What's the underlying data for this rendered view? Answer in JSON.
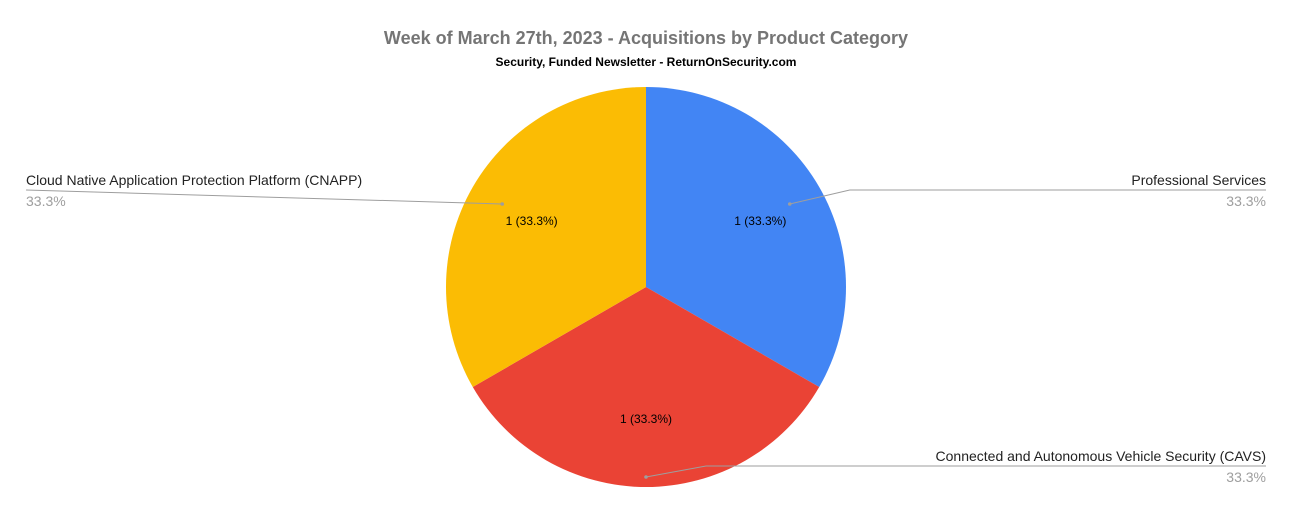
{
  "chart_data": {
    "type": "pie",
    "title": "Week of March 27th, 2023 - Acquisitions by Product Category",
    "subtitle": "Security, Funded Newsletter - ReturnOnSecurity.com",
    "slices": [
      {
        "label": "Professional Services",
        "value": 1,
        "percent": "33.3%",
        "data_label": "1 (33.3%)",
        "color": "#4285F4"
      },
      {
        "label": "Connected and Autonomous Vehicle Security (CAVS)",
        "value": 1,
        "percent": "33.3%",
        "data_label": "1 (33.3%)",
        "color": "#EA4335"
      },
      {
        "label": "Cloud Native Application Protection Platform (CNAPP)",
        "value": 1,
        "percent": "33.3%",
        "data_label": "1 (33.3%)",
        "color": "#FBBC04"
      }
    ],
    "start_angle": "12 o'clock",
    "direction": "clockwise",
    "legend": "labeled leader lines"
  }
}
